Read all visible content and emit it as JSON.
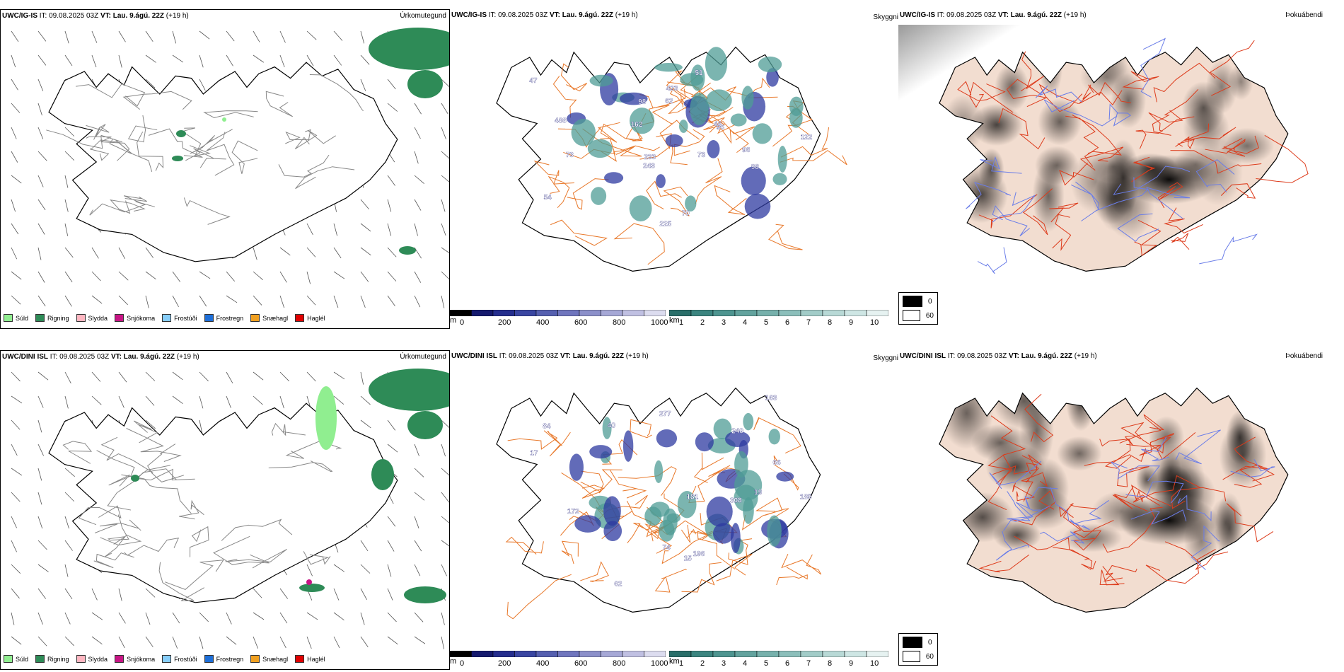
{
  "rows": [
    {
      "precip_header": {
        "model": "UWC/IG-IS",
        "it_label": "IT:",
        "it_value": "09.08.2025 03Z",
        "vt_label": "VT:",
        "vt_value": "Lau. 9.ágú. 22Z",
        "lead": "(+19 h)"
      },
      "precip_title": "Úrkomutegund",
      "vis_header": {
        "model": "UWC/IG-IS",
        "it_label": "IT:",
        "it_value": "09.08.2025 03Z",
        "vt_label": "VT:",
        "vt_value": "Lau. 9.ágú. 22Z",
        "lead": "(+19 h)"
      },
      "vis_title": "Skyggni",
      "fog_header": {
        "model": "UWC/IG-IS",
        "it_label": "IT:",
        "it_value": "09.08.2025 03Z",
        "vt_label": "VT:",
        "vt_value": "Lau. 9.ágú. 22Z",
        "lead": "(+19 h)"
      },
      "fog_title": "Þokuábendi",
      "vis_labels": [
        "73",
        "96",
        "46",
        "70",
        "98",
        "162",
        "51",
        "243",
        "54",
        "96",
        "488",
        "122",
        "98",
        "225",
        "423",
        "62",
        "47",
        "233",
        "73"
      ]
    },
    {
      "precip_header": {
        "model": "UWC/DINI ISL",
        "it_label": "IT:",
        "it_value": "09.08.2025 03Z",
        "vt_label": "VT:",
        "vt_value": "Lau. 9.ágú. 22Z",
        "lead": "(+19 h)"
      },
      "precip_title": "Úrkomutegund",
      "vis_header": {
        "model": "UWC/DINI ISL",
        "it_label": "IT:",
        "it_value": "09.08.2025 03Z",
        "vt_label": "VT:",
        "vt_value": "Lau. 9.ágú. 22Z",
        "lead": "(+19 h)"
      },
      "vis_title": "Skyggni",
      "fog_header": {
        "model": "UWC/DINI ISL",
        "it_label": "IT:",
        "it_value": "09.08.2025 03Z",
        "vt_label": "VT:",
        "vt_value": "Lau. 9.ágú. 22Z",
        "lead": "(+19 h)"
      },
      "fog_title": "Þokuábendi",
      "vis_labels": [
        "84",
        "62",
        "19",
        "308",
        "185",
        "74",
        "277",
        "240",
        "15",
        "181",
        "163",
        "40",
        "66",
        "172",
        "196",
        "17"
      ]
    }
  ],
  "precip_legend": [
    {
      "label": "Súld",
      "color": "#90ee90"
    },
    {
      "label": "Rigning",
      "color": "#2e8b57"
    },
    {
      "label": "Slydda",
      "color": "#ffb6c1"
    },
    {
      "label": "Snjókoma",
      "color": "#c71585"
    },
    {
      "label": "Frostúði",
      "color": "#87cefa"
    },
    {
      "label": "Frostregn",
      "color": "#1e6fd8"
    },
    {
      "label": "Snæhagl",
      "color": "#f0a020"
    },
    {
      "label": "Haglél",
      "color": "#e00000"
    }
  ],
  "height_bar": {
    "unit": "m",
    "ticks": [
      "0",
      "200",
      "400",
      "600",
      "800",
      "1000"
    ],
    "colors": [
      "#000000",
      "#151a6e",
      "#252e8e",
      "#3a46a2",
      "#5660b0",
      "#7076be",
      "#8c90ca",
      "#a6a8d6",
      "#c0c0e2",
      "#dcdcef"
    ]
  },
  "dist_bar": {
    "unit": "km",
    "ticks": [
      "1",
      "2",
      "3",
      "4",
      "5",
      "6",
      "7",
      "8",
      "9",
      "10"
    ],
    "colors": [
      "#2a6f6a",
      "#3c8580",
      "#4e9590",
      "#63a39e",
      "#77b1ac",
      "#8cbfbb",
      "#a2ccc8",
      "#b8d9d6",
      "#cee6e4",
      "#e6f2f1"
    ]
  },
  "fog_legend": [
    {
      "label": "0",
      "color": "#000000"
    },
    {
      "label": "60",
      "color": "#ffffff"
    }
  ],
  "colors": {
    "coast": "#000000",
    "roads_orange": "#e8782a",
    "roads_red": "#dd3b1b",
    "rivers": "#6a7de8",
    "land_fog": "#f2ddd0",
    "rain": "#2e8b57",
    "drizzle": "#90ee90"
  }
}
